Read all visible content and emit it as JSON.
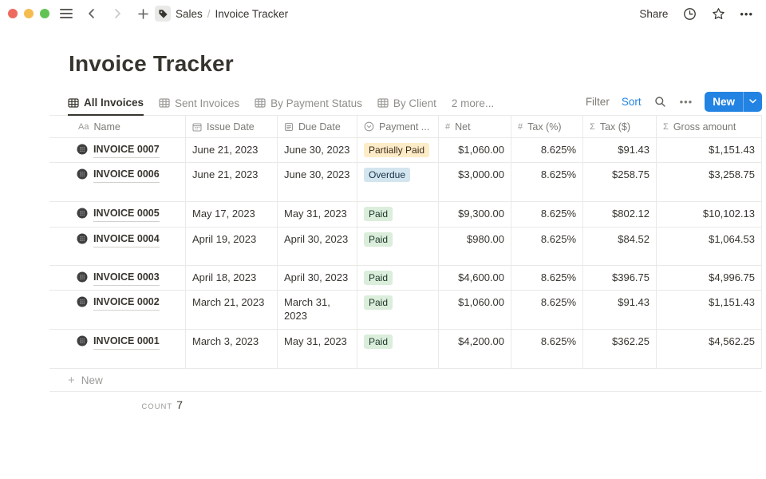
{
  "topbar": {
    "breadcrumb_parent": "Sales",
    "breadcrumb_separator": "/",
    "breadcrumb_current": "Invoice Tracker",
    "share_label": "Share"
  },
  "page": {
    "title": "Invoice Tracker"
  },
  "toolbar": {
    "tabs": [
      {
        "label": "All Invoices",
        "active": true
      },
      {
        "label": "Sent Invoices",
        "active": false
      },
      {
        "label": "By Payment Status",
        "active": false
      },
      {
        "label": "By Client",
        "active": false
      }
    ],
    "more_views_label": "2 more...",
    "filter_label": "Filter",
    "sort_label": "Sort",
    "new_button_label": "New"
  },
  "table": {
    "headers": {
      "name": "Name",
      "issue": "Issue Date",
      "due": "Due Date",
      "payment": "Payment ...",
      "net": "Net",
      "tax_pct": "Tax (%)",
      "tax_usd": "Tax ($)",
      "gross": "Gross amount"
    },
    "rows": [
      {
        "name": "INVOICE 0007",
        "issue_date": "June 21, 2023",
        "due_date": "June 30, 2023",
        "payment_status": "Partially Paid",
        "status_color": "yellow",
        "net": "$1,060.00",
        "tax_pct": "8.625%",
        "tax_usd": "$91.43",
        "gross": "$1,151.43"
      },
      {
        "name": "INVOICE 0006",
        "issue_date": "June 21, 2023",
        "due_date": "June 30, 2023",
        "payment_status": "Overdue",
        "status_color": "blue",
        "net": "$3,000.00",
        "tax_pct": "8.625%",
        "tax_usd": "$258.75",
        "gross": "$3,258.75"
      },
      {
        "name": "INVOICE 0005",
        "issue_date": "May 17, 2023",
        "due_date": "May 31, 2023",
        "payment_status": "Paid",
        "status_color": "green",
        "net": "$9,300.00",
        "tax_pct": "8.625%",
        "tax_usd": "$802.12",
        "gross": "$10,102.13"
      },
      {
        "name": "INVOICE 0004",
        "issue_date": "April 19, 2023",
        "due_date": "April 30, 2023",
        "payment_status": "Paid",
        "status_color": "green",
        "net": "$980.00",
        "tax_pct": "8.625%",
        "tax_usd": "$84.52",
        "gross": "$1,064.53"
      },
      {
        "name": "INVOICE 0003",
        "issue_date": "April 18, 2023",
        "due_date": "April 30, 2023",
        "payment_status": "Paid",
        "status_color": "green",
        "net": "$4,600.00",
        "tax_pct": "8.625%",
        "tax_usd": "$396.75",
        "gross": "$4,996.75"
      },
      {
        "name": "INVOICE 0002",
        "issue_date": "March 21, 2023",
        "due_date": "March 31, 2023",
        "payment_status": "Paid",
        "status_color": "green",
        "net": "$1,060.00",
        "tax_pct": "8.625%",
        "tax_usd": "$91.43",
        "gross": "$1,151.43"
      },
      {
        "name": "INVOICE 0001",
        "issue_date": "March 3, 2023",
        "due_date": "May 31, 2023",
        "payment_status": "Paid",
        "status_color": "green",
        "net": "$4,200.00",
        "tax_pct": "8.625%",
        "tax_usd": "$362.25",
        "gross": "$4,562.25"
      }
    ],
    "new_row_label": "New",
    "count_label": "COUNT",
    "count_value": "7"
  },
  "icons": {
    "plus": "+",
    "ellipsis": "•••",
    "hash": "#",
    "sigma": "Σ",
    "aa": "Aa"
  },
  "colors": {
    "accent_blue": "#2383e2",
    "badge_yellow_bg": "#fdecc8",
    "badge_blue_bg": "#d3e5ef",
    "badge_green_bg": "#dbeddb",
    "traffic_red": "#ee6a5f",
    "traffic_yellow": "#f5bd4f",
    "traffic_green": "#61c354"
  }
}
